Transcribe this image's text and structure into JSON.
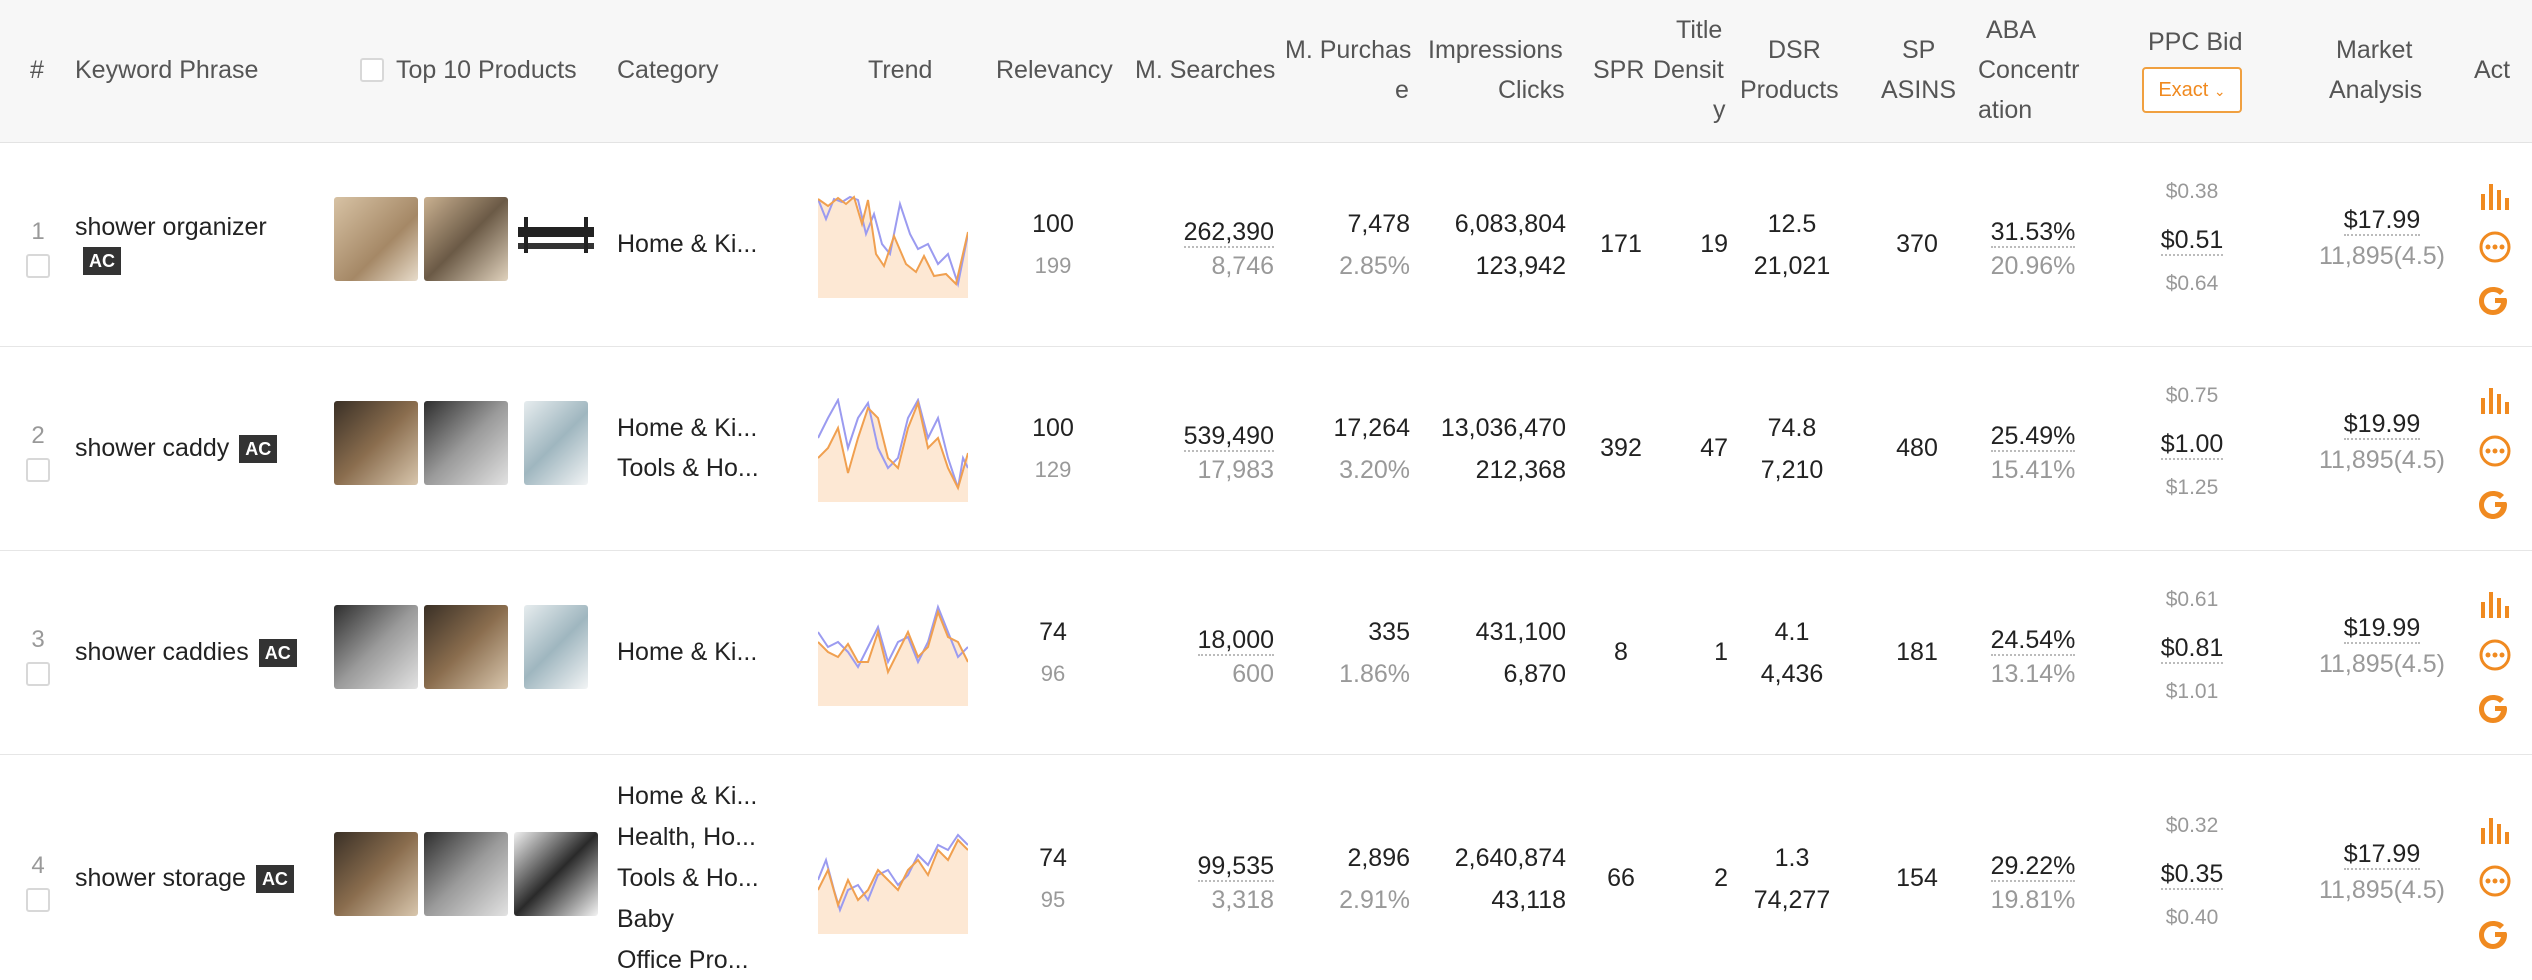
{
  "header": {
    "num": "#",
    "keyword": "Keyword Phrase",
    "top10": "Top 10 Products",
    "category": "Category",
    "trend": "Trend",
    "relevancy": "Relevancy",
    "msearches": "M. Searches",
    "mpurchase_1": "M. Purchas",
    "mpurchase_2": "e",
    "impressions": "Impressions",
    "clicks": "Clicks",
    "spr": "SPR",
    "title_1": "Title",
    "title_2": "Densit",
    "title_3": "y",
    "dsr_1": "DSR",
    "dsr_2": "Products",
    "sp_1": "SP",
    "sp_2": "ASINS",
    "aba_1": "ABA",
    "aba_2": "Concentr",
    "aba_3": "ation",
    "ppc": "PPC Bid",
    "ppc_mode": "Exact",
    "market_1": "Market",
    "market_2": "Analysis",
    "act": "Act"
  },
  "badge": "AC",
  "rows": [
    {
      "num": "1",
      "keyword": "shower organizer",
      "categories": [
        "Home & Ki..."
      ],
      "relevancy": "100",
      "relevancy_sub": "199",
      "searches": "262,390",
      "searches_sub": "8,746",
      "purchase": "7,478",
      "purchase_rate": "2.85%",
      "impressions": "6,083,804",
      "clicks": "123,942",
      "spr": "171",
      "title_density": "19",
      "dsr": "12.5",
      "products": "21,021",
      "sp_asins": "370",
      "aba": "31.53%",
      "aba_sub": "20.96%",
      "ppc_low": "$0.38",
      "ppc_mid": "$0.51",
      "ppc_high": "$0.64",
      "price": "$17.99",
      "reviews": "11,895(4.5)"
    },
    {
      "num": "2",
      "keyword": "shower caddy",
      "categories": [
        "Home & Ki...",
        "Tools & Ho..."
      ],
      "relevancy": "100",
      "relevancy_sub": "129",
      "searches": "539,490",
      "searches_sub": "17,983",
      "purchase": "17,264",
      "purchase_rate": "3.20%",
      "impressions": "13,036,470",
      "clicks": "212,368",
      "spr": "392",
      "title_density": "47",
      "dsr": "74.8",
      "products": "7,210",
      "sp_asins": "480",
      "aba": "25.49%",
      "aba_sub": "15.41%",
      "ppc_low": "$0.75",
      "ppc_mid": "$1.00",
      "ppc_high": "$1.25",
      "price": "$19.99",
      "reviews": "11,895(4.5)"
    },
    {
      "num": "3",
      "keyword": "shower caddies",
      "categories": [
        "Home & Ki..."
      ],
      "relevancy": "74",
      "relevancy_sub": "96",
      "searches": "18,000",
      "searches_sub": "600",
      "purchase": "335",
      "purchase_rate": "1.86%",
      "impressions": "431,100",
      "clicks": "6,870",
      "spr": "8",
      "title_density": "1",
      "dsr": "4.1",
      "products": "4,436",
      "sp_asins": "181",
      "aba": "24.54%",
      "aba_sub": "13.14%",
      "ppc_low": "$0.61",
      "ppc_mid": "$0.81",
      "ppc_high": "$1.01",
      "price": "$19.99",
      "reviews": "11,895(4.5)"
    },
    {
      "num": "4",
      "keyword": "shower storage",
      "categories": [
        "Home & Ki...",
        "Health, Ho...",
        "Tools & Ho...",
        "Baby",
        "Office Pro..."
      ],
      "relevancy": "74",
      "relevancy_sub": "95",
      "searches": "99,535",
      "searches_sub": "3,318",
      "purchase": "2,896",
      "purchase_rate": "2.91%",
      "impressions": "2,640,874",
      "clicks": "43,118",
      "spr": "66",
      "title_density": "2",
      "dsr": "1.3",
      "products": "74,277",
      "sp_asins": "154",
      "aba": "29.22%",
      "aba_sub": "19.81%",
      "ppc_low": "$0.32",
      "ppc_mid": "$0.35",
      "ppc_high": "$0.40",
      "price": "$17.99",
      "reviews": "11,895(4.5)"
    }
  ],
  "colors": {
    "accent": "#f08a20",
    "trend_a": "#f0a050",
    "trend_b": "#9b9bf0",
    "trend_fill": "#fde8d4"
  },
  "icons": [
    "bar-chart-icon",
    "more-options-icon",
    "google-icon"
  ]
}
